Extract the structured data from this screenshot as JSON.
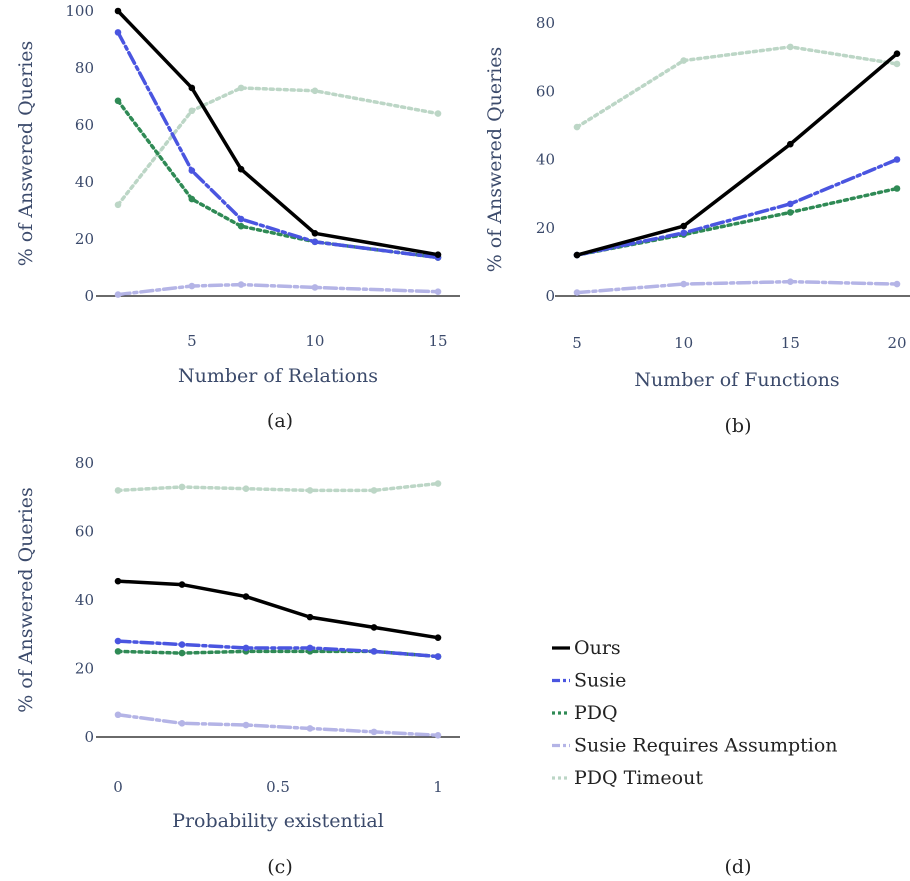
{
  "legend": {
    "entries": [
      "Ours",
      "Susie",
      "PDQ",
      "Susie Requires Assumption",
      "PDQ Timeout"
    ],
    "caption": "(d)"
  },
  "series_styles": [
    {
      "name": "Ours",
      "color": "#000000",
      "dash": "solid"
    },
    {
      "name": "Susie",
      "color": "#4a55e0",
      "dash": "dashdot"
    },
    {
      "name": "PDQ",
      "color": "#2f8a55",
      "dash": "dot"
    },
    {
      "name": "Susie Requires Assumption",
      "color": "#b4b4e6",
      "dash": "dashdot"
    },
    {
      "name": "PDQ Timeout",
      "color": "#bcd6c6",
      "dash": "dot"
    }
  ],
  "chart_data": [
    {
      "type": "line",
      "caption": "(a)",
      "xlabel": "Number of Relations",
      "ylabel": "% of Answered Queries",
      "xlim": [
        2,
        15
      ],
      "ylim": [
        0,
        100
      ],
      "xticks": [
        5,
        10,
        15
      ],
      "yticks": [
        0,
        20,
        40,
        60,
        80,
        100
      ],
      "x": [
        2,
        5,
        7,
        10,
        15
      ],
      "series": [
        {
          "name": "Ours",
          "values": [
            100,
            73,
            44.5,
            22,
            14.5
          ]
        },
        {
          "name": "Susie",
          "values": [
            92.5,
            44,
            27,
            19,
            13.5
          ]
        },
        {
          "name": "PDQ",
          "values": [
            68.5,
            34,
            24.5,
            19,
            13.5
          ]
        },
        {
          "name": "Susie Requires Assumption",
          "values": [
            0.5,
            3.5,
            4,
            3,
            1.5
          ]
        },
        {
          "name": "PDQ Timeout",
          "values": [
            32,
            65,
            73,
            72,
            64
          ]
        }
      ]
    },
    {
      "type": "line",
      "caption": "(b)",
      "xlabel": "Number of Functions",
      "ylabel": "% of Answered Queries",
      "xlim": [
        5,
        20
      ],
      "ylim": [
        0,
        80
      ],
      "xticks": [
        5,
        10,
        15,
        20
      ],
      "yticks": [
        0,
        20,
        40,
        60,
        80
      ],
      "x": [
        5,
        10,
        15,
        20
      ],
      "series": [
        {
          "name": "Ours",
          "values": [
            12,
            20.5,
            44.5,
            71
          ]
        },
        {
          "name": "Susie",
          "values": [
            12,
            18.5,
            27,
            40
          ]
        },
        {
          "name": "PDQ",
          "values": [
            12,
            18,
            24.5,
            31.5
          ]
        },
        {
          "name": "Susie Requires Assumption",
          "values": [
            1,
            3.5,
            4.2,
            3.5
          ]
        },
        {
          "name": "PDQ Timeout",
          "values": [
            49.5,
            69,
            73,
            68
          ]
        }
      ]
    },
    {
      "type": "line",
      "caption": "(c)",
      "xlabel": "Probability existential",
      "ylabel": "% of Answered Queries",
      "xlim": [
        0,
        1
      ],
      "ylim": [
        0,
        80
      ],
      "xticks": [
        0,
        0.5,
        1
      ],
      "xticklabels": [
        "0",
        "0.5",
        "1"
      ],
      "yticks": [
        0,
        20,
        40,
        60,
        80
      ],
      "x": [
        0,
        0.2,
        0.4,
        0.6,
        0.8,
        1.0
      ],
      "series": [
        {
          "name": "Ours",
          "values": [
            45.5,
            44.5,
            41,
            35,
            32,
            29
          ]
        },
        {
          "name": "Susie",
          "values": [
            28,
            27,
            26,
            26,
            25,
            23.5
          ]
        },
        {
          "name": "PDQ",
          "values": [
            25,
            24.5,
            25,
            25,
            25,
            23.5
          ]
        },
        {
          "name": "Susie Requires Assumption",
          "values": [
            6.5,
            4,
            3.5,
            2.5,
            1.5,
            0.5
          ]
        },
        {
          "name": "PDQ Timeout",
          "values": [
            72,
            73,
            72.5,
            72,
            72,
            74
          ]
        }
      ]
    }
  ]
}
